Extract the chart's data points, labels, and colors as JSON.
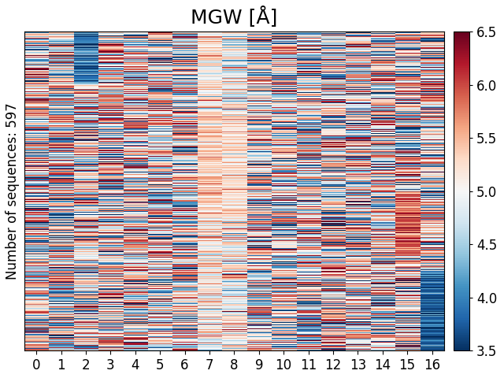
{
  "title": "MGW [Å]",
  "ylabel": "Number of sequences: 597",
  "n_rows": 597,
  "n_cols": 17,
  "x_ticks": [
    0,
    1,
    2,
    3,
    4,
    5,
    6,
    7,
    8,
    9,
    10,
    11,
    12,
    13,
    14,
    15,
    16
  ],
  "vmin": 3.5,
  "vmax": 6.5,
  "cbar_ticks": [
    3.5,
    4.0,
    4.5,
    5.0,
    5.5,
    6.0,
    6.5
  ],
  "colormap": "RdBu_r",
  "seed": 12345,
  "col_means": [
    5.0,
    5.0,
    4.5,
    4.5,
    5.0,
    5.1,
    5.0,
    5.0,
    5.0,
    5.0,
    5.0,
    5.0,
    4.9,
    5.0,
    5.0,
    5.0,
    5.0
  ],
  "col_stds": [
    0.8,
    0.9,
    1.0,
    1.0,
    0.7,
    0.8,
    0.7,
    0.5,
    0.7,
    0.8,
    0.8,
    0.8,
    0.8,
    0.8,
    0.8,
    0.8,
    0.9
  ],
  "title_fontsize": 18,
  "tick_fontsize": 12,
  "ylabel_fontsize": 12,
  "cbar_fontsize": 12,
  "figsize": [
    6.4,
    4.8
  ],
  "dpi": 100
}
